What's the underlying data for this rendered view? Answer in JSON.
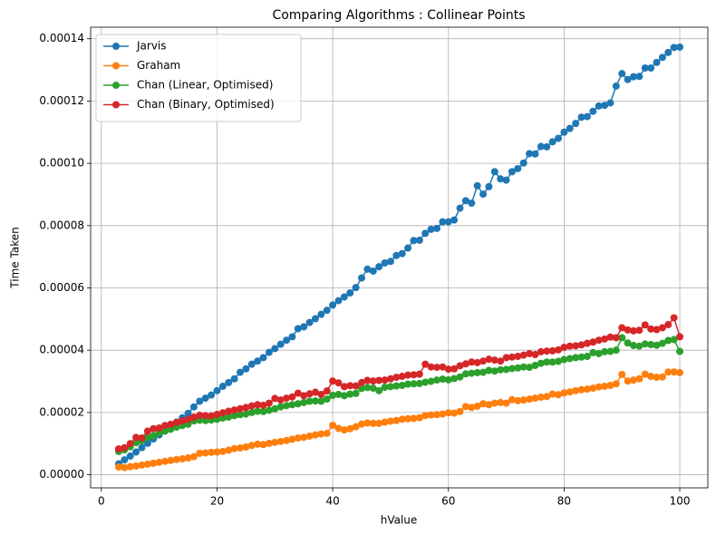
{
  "chart_data": {
    "type": "line",
    "title": "Comparing Algorithms : Collinear Points",
    "x_label": "hValue",
    "y_label": "Time Taken",
    "x": [
      3,
      4,
      5,
      6,
      7,
      8,
      9,
      10,
      11,
      12,
      13,
      14,
      15,
      16,
      17,
      18,
      19,
      20,
      21,
      22,
      23,
      24,
      25,
      26,
      27,
      28,
      29,
      30,
      31,
      32,
      33,
      34,
      35,
      36,
      37,
      38,
      39,
      40,
      41,
      42,
      43,
      44,
      45,
      46,
      47,
      48,
      49,
      50,
      51,
      52,
      53,
      54,
      55,
      56,
      57,
      58,
      59,
      60,
      61,
      62,
      63,
      64,
      65,
      66,
      67,
      68,
      69,
      70,
      71,
      72,
      73,
      74,
      75,
      76,
      77,
      78,
      79,
      80,
      81,
      82,
      83,
      84,
      85,
      86,
      87,
      88,
      89,
      90,
      91,
      92,
      93,
      94,
      95,
      96,
      97,
      98,
      99,
      100
    ],
    "series": [
      {
        "name": "Jarvis",
        "color": "#1f77b4",
        "values": [
          3.5e-06,
          4.8e-06,
          6e-06,
          7.3e-06,
          8.7e-06,
          1.01e-05,
          1.15e-05,
          1.28e-05,
          1.42e-05,
          1.56e-05,
          1.69e-05,
          1.83e-05,
          1.97e-05,
          2.18e-05,
          2.36e-05,
          2.46e-05,
          2.56e-05,
          2.7e-05,
          2.84e-05,
          2.96e-05,
          3.08e-05,
          3.29e-05,
          3.4e-05,
          3.55e-05,
          3.65e-05,
          3.76e-05,
          3.93e-05,
          4.05e-05,
          4.19e-05,
          4.32e-05,
          4.43e-05,
          4.69e-05,
          4.75e-05,
          4.89e-05,
          5.01e-05,
          5.15e-05,
          5.28e-05,
          5.45e-05,
          5.59e-05,
          5.71e-05,
          5.84e-05,
          6.01e-05,
          6.32e-05,
          6.6e-05,
          6.54e-05,
          6.68e-05,
          6.8e-05,
          6.85e-05,
          7.04e-05,
          7.1e-05,
          7.28e-05,
          7.52e-05,
          7.53e-05,
          7.75e-05,
          7.88e-05,
          7.91e-05,
          8.12e-05,
          8.12e-05,
          8.18e-05,
          8.56e-05,
          8.8e-05,
          8.72e-05,
          9.28e-05,
          9.01e-05,
          9.25e-05,
          9.73e-05,
          9.5e-05,
          9.46e-05,
          9.73e-05,
          9.83e-05,
          0.0001001,
          0.0001031,
          0.000103,
          0.0001054,
          0.0001053,
          0.0001069,
          0.000108,
          0.00011,
          0.0001112,
          0.0001128,
          0.0001148,
          0.000115,
          0.0001167,
          0.0001184,
          0.0001186,
          0.0001194,
          0.0001248,
          0.0001288,
          0.0001269,
          0.0001278,
          0.0001279,
          0.0001306,
          0.0001306,
          0.0001324,
          0.000134,
          0.0001356,
          0.0001372,
          0.0001373
        ]
      },
      {
        "name": "Graham",
        "color": "#ff7f0e",
        "values": [
          2.5e-06,
          2.3e-06,
          2.6e-06,
          2.8e-06,
          3.1e-06,
          3.4e-06,
          3.7e-06,
          4e-06,
          4.3e-06,
          4.6e-06,
          4.9e-06,
          5.1e-06,
          5.4e-06,
          5.8e-06,
          6.9e-06,
          7e-06,
          7.2e-06,
          7.3e-06,
          7.5e-06,
          7.9e-06,
          8.4e-06,
          8.6e-06,
          8.9e-06,
          9.4e-06,
          9.8e-06,
          9.7e-06,
          1.01e-05,
          1.04e-05,
          1.07e-05,
          1.1e-05,
          1.14e-05,
          1.18e-05,
          1.2e-05,
          1.24e-05,
          1.28e-05,
          1.31e-05,
          1.33e-05,
          1.59e-05,
          1.49e-05,
          1.44e-05,
          1.48e-05,
          1.54e-05,
          1.63e-05,
          1.66e-05,
          1.65e-05,
          1.65e-05,
          1.69e-05,
          1.72e-05,
          1.74e-05,
          1.78e-05,
          1.8e-05,
          1.81e-05,
          1.83e-05,
          1.9e-05,
          1.92e-05,
          1.93e-05,
          1.95e-05,
          1.99e-05,
          1.98e-05,
          2.03e-05,
          2.19e-05,
          2.16e-05,
          2.2e-05,
          2.28e-05,
          2.25e-05,
          2.3e-05,
          2.32e-05,
          2.3e-05,
          2.41e-05,
          2.38e-05,
          2.4e-05,
          2.43e-05,
          2.46e-05,
          2.49e-05,
          2.51e-05,
          2.59e-05,
          2.57e-05,
          2.63e-05,
          2.66e-05,
          2.7e-05,
          2.73e-05,
          2.75e-05,
          2.78e-05,
          2.82e-05,
          2.84e-05,
          2.87e-05,
          2.92e-05,
          3.22e-05,
          3.01e-05,
          3.04e-05,
          3.08e-05,
          3.23e-05,
          3.16e-05,
          3.13e-05,
          3.14e-05,
          3.3e-05,
          3.3e-05,
          3.28e-05
        ]
      },
      {
        "name": "Chan (Linear, Optimised)",
        "color": "#2ca02c",
        "values": [
          7.5e-06,
          8e-06,
          9e-06,
          1.03e-05,
          1.09e-05,
          1.2e-05,
          1.25e-05,
          1.35e-05,
          1.4e-05,
          1.46e-05,
          1.53e-05,
          1.58e-05,
          1.62e-05,
          1.73e-05,
          1.75e-05,
          1.74e-05,
          1.76e-05,
          1.78e-05,
          1.82e-05,
          1.85e-05,
          1.9e-05,
          1.93e-05,
          1.95e-05,
          2e-05,
          2.04e-05,
          2.03e-05,
          2.07e-05,
          2.12e-05,
          2.18e-05,
          2.22e-05,
          2.25e-05,
          2.28e-05,
          2.32e-05,
          2.36e-05,
          2.37e-05,
          2.36e-05,
          2.43e-05,
          2.55e-05,
          2.58e-05,
          2.54e-05,
          2.59e-05,
          2.61e-05,
          2.77e-05,
          2.8e-05,
          2.78e-05,
          2.7e-05,
          2.81e-05,
          2.83e-05,
          2.85e-05,
          2.87e-05,
          2.91e-05,
          2.92e-05,
          2.93e-05,
          2.97e-05,
          3e-05,
          3.04e-05,
          3.07e-05,
          3.05e-05,
          3.09e-05,
          3.14e-05,
          3.24e-05,
          3.26e-05,
          3.28e-05,
          3.29e-05,
          3.35e-05,
          3.33e-05,
          3.37e-05,
          3.38e-05,
          3.41e-05,
          3.43e-05,
          3.46e-05,
          3.45e-05,
          3.51e-05,
          3.58e-05,
          3.62e-05,
          3.62e-05,
          3.64e-05,
          3.7e-05,
          3.73e-05,
          3.76e-05,
          3.78e-05,
          3.8e-05,
          3.92e-05,
          3.89e-05,
          3.95e-05,
          3.96e-05,
          4e-05,
          4.4e-05,
          4.23e-05,
          4.15e-05,
          4.13e-05,
          4.2e-05,
          4.18e-05,
          4.16e-05,
          4.22e-05,
          4.31e-05,
          4.34e-05,
          3.96e-05
        ]
      },
      {
        "name": "Chan (Binary, Optimised)",
        "color": "#d62728",
        "values": [
          8.3e-06,
          8.7e-06,
          1e-05,
          1.2e-05,
          1.18e-05,
          1.4e-05,
          1.48e-05,
          1.5e-05,
          1.58e-05,
          1.62e-05,
          1.68e-05,
          1.73e-05,
          1.78e-05,
          1.85e-05,
          1.91e-05,
          1.9e-05,
          1.89e-05,
          1.94e-05,
          1.99e-05,
          2.04e-05,
          2.08e-05,
          2.12e-05,
          2.16e-05,
          2.21e-05,
          2.25e-05,
          2.23e-05,
          2.3e-05,
          2.45e-05,
          2.4e-05,
          2.46e-05,
          2.5e-05,
          2.62e-05,
          2.54e-05,
          2.6e-05,
          2.65e-05,
          2.58e-05,
          2.69e-05,
          3.01e-05,
          2.95e-05,
          2.83e-05,
          2.86e-05,
          2.85e-05,
          2.96e-05,
          3.03e-05,
          3.01e-05,
          3.03e-05,
          3.04e-05,
          3.08e-05,
          3.13e-05,
          3.16e-05,
          3.2e-05,
          3.21e-05,
          3.23e-05,
          3.55e-05,
          3.46e-05,
          3.45e-05,
          3.46e-05,
          3.39e-05,
          3.4e-05,
          3.5e-05,
          3.56e-05,
          3.62e-05,
          3.6e-05,
          3.65e-05,
          3.71e-05,
          3.68e-05,
          3.65e-05,
          3.76e-05,
          3.78e-05,
          3.8e-05,
          3.84e-05,
          3.89e-05,
          3.86e-05,
          3.95e-05,
          3.97e-05,
          3.98e-05,
          4.01e-05,
          4.09e-05,
          4.13e-05,
          4.14e-05,
          4.17e-05,
          4.22e-05,
          4.26e-05,
          4.32e-05,
          4.36e-05,
          4.42e-05,
          4.4e-05,
          4.72e-05,
          4.65e-05,
          4.62e-05,
          4.64e-05,
          4.81e-05,
          4.68e-05,
          4.66e-05,
          4.72e-05,
          4.82e-05,
          5.04e-05,
          4.43e-05
        ]
      }
    ],
    "xlim": [
      -1.85,
      104.85
    ],
    "xticks": [
      0,
      20,
      40,
      60,
      80,
      100
    ],
    "ylim": [
      -4.2e-06,
      0.0001437
    ],
    "yticks": [
      {
        "value": 0,
        "label": "0.00000"
      },
      {
        "value": 2e-05,
        "label": "0.00002"
      },
      {
        "value": 4e-05,
        "label": "0.00004"
      },
      {
        "value": 6e-05,
        "label": "0.00006"
      },
      {
        "value": 8e-05,
        "label": "0.00008"
      },
      {
        "value": 0.0001,
        "label": "0.00010"
      },
      {
        "value": 0.00012,
        "label": "0.00012"
      },
      {
        "value": 0.00014,
        "label": "0.00014"
      }
    ],
    "grid": true,
    "legend": "upper left",
    "markers": true
  }
}
